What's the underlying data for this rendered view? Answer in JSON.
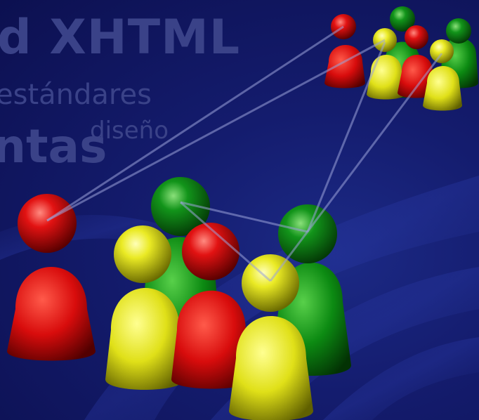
{
  "background_text": {
    "line1": "d XHTML",
    "line2": "estándares",
    "line3": "ntas",
    "line4": "diseño"
  },
  "colors": {
    "background": "#10155a",
    "red": "#e01010",
    "green": "#0a8a0a",
    "yellow": "#e6e81a",
    "link_line": "#8890c8",
    "faded_text": "#3a4288"
  }
}
